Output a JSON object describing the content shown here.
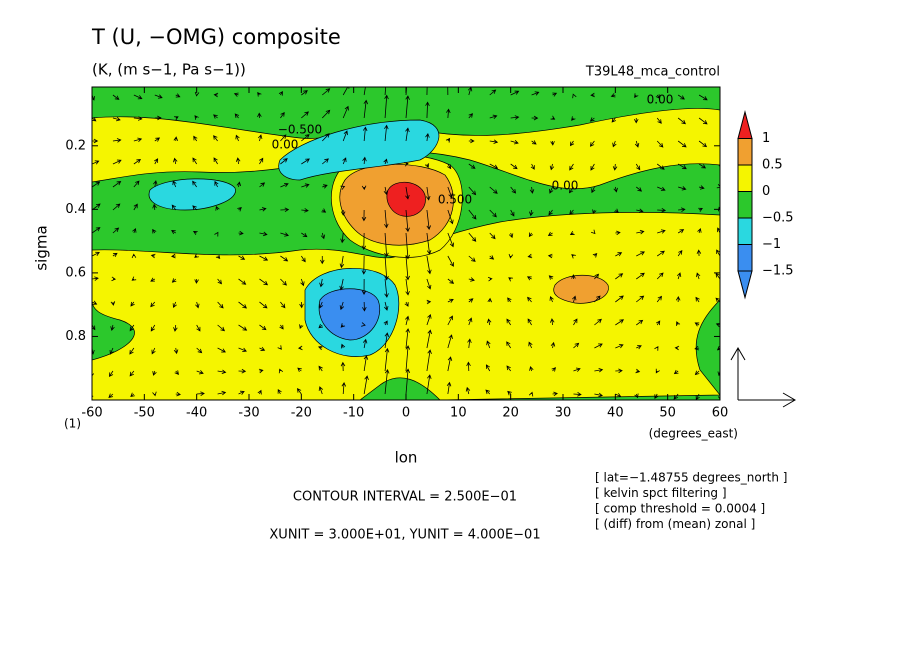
{
  "chart_data": {
    "type": "contour",
    "title": "T (U, −OMG) composite",
    "subtitle": "(K, (m s−1, Pa s−1))",
    "run_name": "T39L48_mca_control",
    "xlabel": "lon",
    "xunit_label": "(degrees_east)",
    "ylabel": "sigma",
    "y_extra_label": "(1)",
    "xlim": [
      -60,
      60
    ],
    "xticks": [
      -60,
      -50,
      -40,
      -30,
      -20,
      -10,
      0,
      10,
      20,
      30,
      40,
      50,
      60
    ],
    "ylim": [
      0.015,
      1
    ],
    "y_inverted": true,
    "yticks": [
      0.2,
      0.4,
      0.6,
      0.8
    ],
    "levels": [
      {
        "value": 1,
        "label": "1"
      },
      0.5,
      0,
      {
        "value": -0.5,
        "label": "−0.5"
      },
      {
        "value": -1,
        "label": "−1"
      },
      {
        "value": -1.5,
        "label": "−1.5"
      }
    ],
    "level_colors": [
      "#ee2020",
      "#f0a030",
      "#f5f500",
      "#2cc82c",
      "#2ad8e0",
      "#3a8ef0",
      "#3a8ef0"
    ],
    "contour_labels": [
      "−0.500",
      "0.00",
      "0.00",
      "0.500",
      "0.00"
    ],
    "notes": [
      "CONTOUR INTERVAL = 2.500E−01",
      "XUNIT = 3.000E+01, YUNIT = 4.000E−01"
    ],
    "info": [
      "[ lat=−1.48755 degrees_north ]",
      "[ kelvin spct filtering ]",
      "[ comp threshold = 0.0004 ]",
      "[ (diff) from (mean) zonal ]"
    ]
  }
}
